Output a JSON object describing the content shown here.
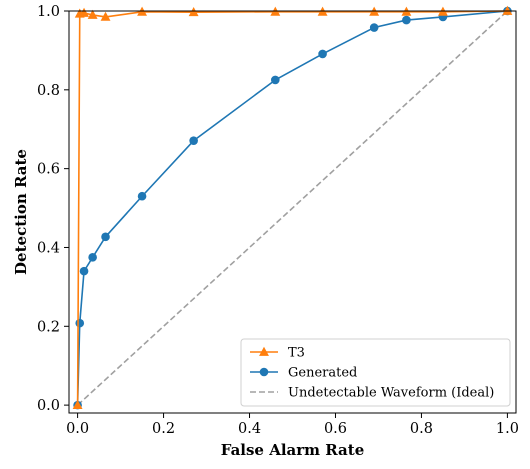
{
  "chart_data": {
    "type": "line",
    "title": "",
    "xlabel": "False Alarm Rate",
    "ylabel": "Detection Rate",
    "xlim": [
      -0.02,
      1.02
    ],
    "ylim": [
      -0.02,
      1.0
    ],
    "xticks": [
      0.0,
      0.2,
      0.4,
      0.6,
      0.8,
      1.0
    ],
    "xtick_labels": [
      "0.0",
      "0.2",
      "0.4",
      "0.6",
      "0.8",
      "1.0"
    ],
    "yticks": [
      0.0,
      0.2,
      0.4,
      0.6,
      0.8,
      1.0
    ],
    "ytick_labels": [
      "0.0",
      "0.2",
      "0.4",
      "0.6",
      "0.8",
      "1.0"
    ],
    "grid": false,
    "legend_position": "bottom-right",
    "series": [
      {
        "name": "T3",
        "color": "#ff7f0e",
        "marker": "triangle",
        "linestyle": "solid",
        "x": [
          0.0,
          0.005,
          0.015,
          0.035,
          0.065,
          0.15,
          0.27,
          0.46,
          0.57,
          0.69,
          0.765,
          0.85,
          1.0
        ],
        "y": [
          0.0,
          0.993,
          0.995,
          0.99,
          0.985,
          0.998,
          0.997,
          0.998,
          0.998,
          0.998,
          0.998,
          0.998,
          1.0
        ]
      },
      {
        "name": "Generated",
        "color": "#1f77b4",
        "marker": "circle",
        "linestyle": "solid",
        "x": [
          0.0,
          0.005,
          0.015,
          0.035,
          0.065,
          0.15,
          0.27,
          0.46,
          0.57,
          0.69,
          0.765,
          0.85,
          1.0
        ],
        "y": [
          0.0,
          0.208,
          0.34,
          0.375,
          0.427,
          0.53,
          0.671,
          0.825,
          0.891,
          0.958,
          0.977,
          0.985,
          1.0
        ]
      },
      {
        "name": "Undetectable Waveform (Ideal)",
        "color": "#a0a0a0",
        "marker": "none",
        "linestyle": "dashed",
        "x": [
          0.0,
          1.0
        ],
        "y": [
          0.0,
          1.0
        ]
      }
    ]
  }
}
